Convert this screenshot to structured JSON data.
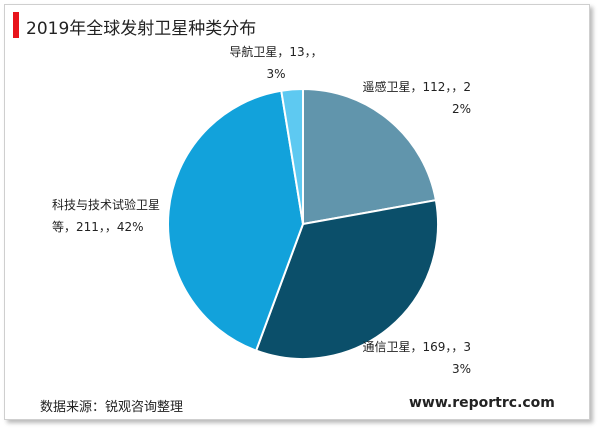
{
  "chart_data": {
    "type": "pie",
    "title": "2019年全球发射卫星种类分布",
    "categories": [
      "遥感卫星",
      "通信卫星",
      "科技与技术试验卫星等",
      "导航卫星"
    ],
    "values": [
      112,
      169,
      211,
      13
    ],
    "value_labels": [
      "遥感卫星，112，，22%",
      "通信卫星，169，，33%",
      "科技与技术试验卫星等，211，，42%",
      "导航卫星，13，，3%"
    ],
    "colors": [
      "#6195ac",
      "#0b4f6a",
      "#12a2db",
      "#5ec9f1"
    ],
    "source": "数据来源：锐观咨询整理",
    "website": "www.reportrc.com"
  }
}
